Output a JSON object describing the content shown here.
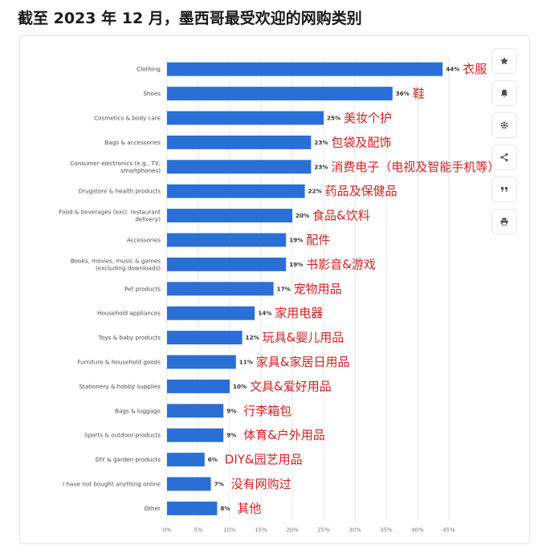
{
  "header": {
    "title": "截至 2023 年 12 月，墨西哥最受欢迎的网购类别"
  },
  "toolbar": {
    "buttons": [
      {
        "icon": "star-icon",
        "name": "favorite-button"
      },
      {
        "icon": "bell-icon",
        "name": "notify-button"
      },
      {
        "icon": "gear-icon",
        "name": "settings-button"
      },
      {
        "icon": "share-icon",
        "name": "share-button"
      },
      {
        "icon": "quote-icon",
        "name": "cite-button"
      },
      {
        "icon": "print-icon",
        "name": "print-button"
      }
    ]
  },
  "colors": {
    "bar": "#2a6fd6",
    "annotation": "#d62020",
    "grid": "#e3e6ea"
  },
  "chart_data": {
    "type": "bar",
    "orientation": "horizontal",
    "categories": [
      "Clothing",
      "Shoes",
      "Cosmetics & body care",
      "Bags & accessories",
      "Consumer electronics (e.g., TV, smartphones)",
      "Drugstore & health products",
      "Food & beverages (excl. restaurant delivery)",
      "Accessories",
      "Books, movies, music & games (excluding downloads)",
      "Pet products",
      "Household appliances",
      "Toys & baby products",
      "Furniture & household goods",
      "Stationery & hobby supplies",
      "Bags & luggage",
      "Sports & outdoor products",
      "DIY & garden products",
      "I have not bought anything online",
      "Other"
    ],
    "category_lines": [
      [
        "Clothing"
      ],
      [
        "Shoes"
      ],
      [
        "Cosmetics & body care"
      ],
      [
        "Bags & accessories"
      ],
      [
        "Consumer electronics (e.g., TV,",
        "smartphones)"
      ],
      [
        "Drugstore & health products"
      ],
      [
        "Food & beverages (excl. restaurant",
        "delivery)"
      ],
      [
        "Accessories"
      ],
      [
        "Books, movies, music & games",
        "(excluding downloads)"
      ],
      [
        "Pet products"
      ],
      [
        "Household appliances"
      ],
      [
        "Toys & baby products"
      ],
      [
        "Furniture & household goods"
      ],
      [
        "Stationery & hobby supplies"
      ],
      [
        "Bags & luggage"
      ],
      [
        "Sports & outdoor products"
      ],
      [
        "DIY & garden products"
      ],
      [
        "I have not bought anything online"
      ],
      [
        "Other"
      ]
    ],
    "values": [
      44,
      36,
      25,
      23,
      23,
      22,
      20,
      19,
      19,
      17,
      14,
      12,
      11,
      10,
      9,
      9,
      6,
      7,
      8
    ],
    "value_labels": [
      "44%",
      "36%",
      "25%",
      "23%",
      "23%",
      "22%",
      "20%",
      "19%",
      "19%",
      "17%",
      "14%",
      "12%",
      "11%",
      "10%",
      "9%",
      "9%",
      "6%",
      "7%",
      "8%"
    ],
    "annotations": [
      "衣服",
      "鞋",
      "美妆个护",
      "包袋及配饰",
      "消费电子（电视及智能手机等）",
      "药品及保健品",
      "食品&饮料",
      "配件",
      "书影音&游戏",
      "宠物用品",
      "家用电器",
      "玩具&婴儿用品",
      "家具&家居日用品",
      "文具&爱好用品",
      "行李箱包",
      "体育&户外用品",
      "DIY&园艺用品",
      "没有网购过",
      "其他"
    ],
    "x_ticks": [
      0,
      5,
      10,
      15,
      20,
      25,
      30,
      35,
      40,
      45
    ],
    "x_tick_labels": [
      "0%",
      "5%",
      "10%",
      "15%",
      "20%",
      "25%",
      "30%",
      "35%",
      "40%",
      "45%"
    ],
    "xlim": [
      0,
      47
    ],
    "grid": true
  }
}
